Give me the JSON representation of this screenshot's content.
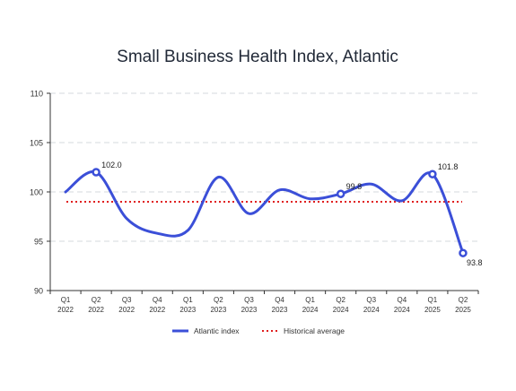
{
  "chart_data": {
    "type": "line",
    "title": "Small Business Health Index, Atlantic",
    "xlabel": "",
    "ylabel": "",
    "ylim": [
      90,
      110
    ],
    "yticks": [
      90,
      95,
      100,
      105,
      110
    ],
    "grid": true,
    "legend_position": "bottom",
    "categories": [
      [
        "Q1",
        "2022"
      ],
      [
        "Q2",
        "2022"
      ],
      [
        "Q3",
        "2022"
      ],
      [
        "Q4",
        "2022"
      ],
      [
        "Q1",
        "2023"
      ],
      [
        "Q2",
        "2023"
      ],
      [
        "Q3",
        "2023"
      ],
      [
        "Q4",
        "2023"
      ],
      [
        "Q1",
        "2024"
      ],
      [
        "Q2",
        "2024"
      ],
      [
        "Q3",
        "2024"
      ],
      [
        "Q4",
        "2024"
      ],
      [
        "Q1",
        "2025"
      ],
      [
        "Q2",
        "2025"
      ]
    ],
    "series": [
      {
        "name": "Atlantic index",
        "color": "#3b4fd8",
        "values": [
          100.0,
          102.0,
          97.3,
          95.8,
          96.1,
          101.5,
          97.8,
          100.2,
          99.3,
          99.8,
          100.8,
          99.1,
          101.8,
          93.8
        ],
        "annotated_points": [
          {
            "index": 1,
            "label": "102.0"
          },
          {
            "index": 9,
            "label": "99.8"
          },
          {
            "index": 12,
            "label": "101.8"
          },
          {
            "index": 13,
            "label": "93.8"
          }
        ]
      }
    ],
    "reference_lines": [
      {
        "name": "Historical average",
        "value": 99.0,
        "color": "#e01e1e",
        "style": "dotted"
      }
    ]
  }
}
